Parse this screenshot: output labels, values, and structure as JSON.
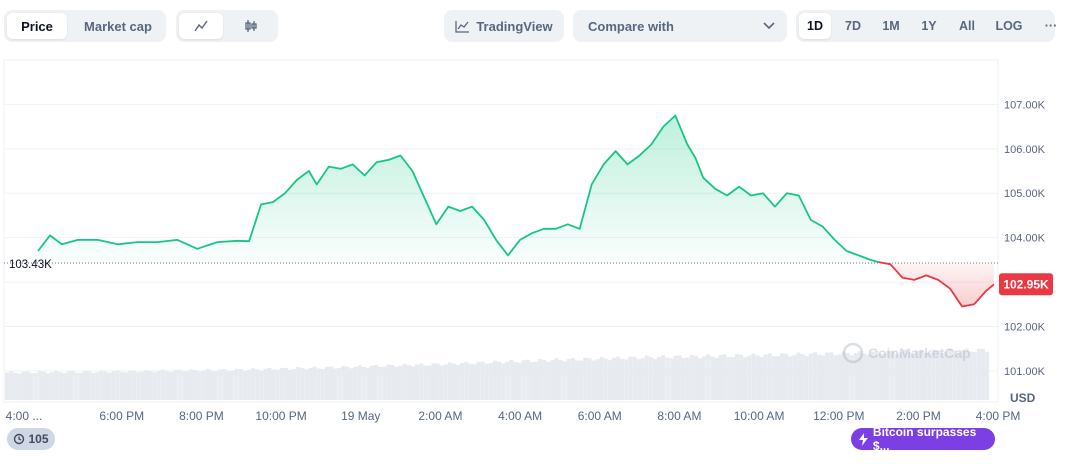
{
  "toolbar": {
    "view_tabs": [
      "Price",
      "Market cap"
    ],
    "active_view": "Price",
    "chart_style_icons": [
      "line-chart-icon",
      "candlestick-icon"
    ],
    "tradingview_label": "TradingView",
    "compare_label": "Compare with",
    "ranges": [
      "1D",
      "7D",
      "1M",
      "1Y",
      "All"
    ],
    "active_range": "1D",
    "log_label": "LOG",
    "more_label": "···"
  },
  "watermark": "CoinMarketCap",
  "events_badge": {
    "count": "105"
  },
  "news_badge": {
    "label": "Bitcoin surpasses $..."
  },
  "colors": {
    "up": "#16c784",
    "down": "#ea3943",
    "badge": "#7b3fe4"
  },
  "chart_data": {
    "type": "area",
    "currency": "USD",
    "reference_price_label": "103.43K",
    "reference_price": 103430,
    "current_price_label": "102.95K",
    "current_price": 102950,
    "ylim": [
      100300,
      108000
    ],
    "y_ticks": [
      "107.00K",
      "106.00K",
      "105.00K",
      "104.00K",
      "103.00K",
      "102.00K",
      "101.00K"
    ],
    "y_tick_values": [
      107000,
      106000,
      105000,
      104000,
      103000,
      102000,
      101000
    ],
    "x_ticks": [
      "4:00 ...",
      "6:00 PM",
      "8:00 PM",
      "10:00 PM",
      "19 May",
      "2:00 AM",
      "4:00 AM",
      "6:00 AM",
      "8:00 AM",
      "10:00 AM",
      "12:00 PM",
      "2:00 PM",
      "4:00 PM"
    ],
    "x_tick_hours": [
      0,
      1.4,
      3.4,
      5.4,
      7.4,
      9.4,
      11.4,
      13.4,
      15.4,
      17.4,
      19.4,
      21.4,
      23.4
    ],
    "x_hours_span": 24,
    "series": [
      {
        "x": [
          0,
          0.3,
          0.6,
          1.0,
          1.5,
          2.0,
          2.5,
          3.0,
          3.5,
          4.0,
          4.5,
          5.0,
          5.3,
          5.6,
          5.9,
          6.2,
          6.5,
          6.8,
          7.0,
          7.3,
          7.6,
          7.9,
          8.2,
          8.5,
          8.8,
          9.1,
          9.4,
          9.7,
          10.0,
          10.3,
          10.6,
          10.9,
          11.2,
          11.5,
          11.8,
          12.1,
          12.4,
          12.7,
          13.0,
          13.3,
          13.6,
          13.9,
          14.2,
          14.5,
          14.8,
          15.1,
          15.4,
          15.7,
          16.0,
          16.3,
          16.5,
          16.7,
          17.0,
          17.3,
          17.6,
          17.9,
          18.2,
          18.5,
          18.8,
          19.1,
          19.4,
          19.7,
          20.0,
          20.3,
          20.6,
          20.9,
          21.1
        ],
        "y": [
          103700,
          104050,
          103850,
          103950,
          103950,
          103850,
          103900,
          103900,
          103950,
          103750,
          103900,
          103930,
          103920,
          104750,
          104800,
          105000,
          105300,
          105500,
          105200,
          105600,
          105550,
          105650,
          105400,
          105700,
          105750,
          105850,
          105500,
          104900,
          104300,
          104700,
          104600,
          104700,
          104400,
          103950,
          103600,
          103950,
          104100,
          104200,
          104200,
          104300,
          104200,
          105200,
          105650,
          105950,
          105650,
          105850,
          106100,
          106500,
          106750,
          106100,
          105800,
          105350,
          105100,
          104950,
          105150,
          104950,
          105000,
          104700,
          105000,
          104950,
          104400,
          104250,
          103950,
          103700,
          103600,
          103500,
          103450
        ]
      },
      {
        "x": [
          21.1,
          21.4,
          21.7,
          22.0,
          22.3,
          22.6,
          22.9,
          23.2,
          23.5,
          23.8,
          24.0
        ],
        "y": [
          103450,
          103400,
          103100,
          103050,
          103150,
          103050,
          102850,
          102450,
          102500,
          102800,
          102950
        ]
      }
    ],
    "volume_relative": [
      0.55,
      0.57,
      0.6,
      0.65,
      0.72,
      0.8,
      0.86,
      0.9,
      0.95,
      1.0
    ]
  }
}
